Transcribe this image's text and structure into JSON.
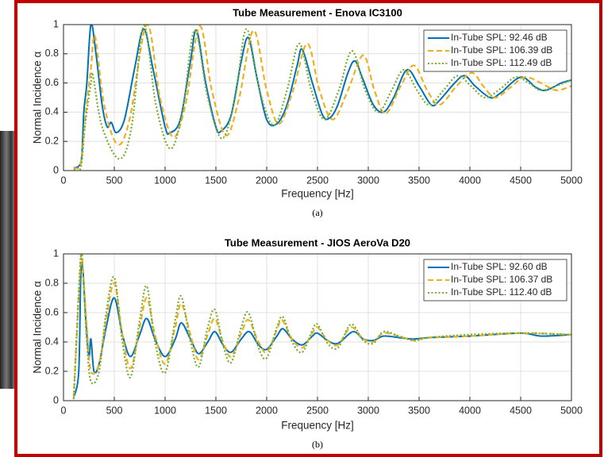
{
  "chart_data": [
    {
      "type": "line",
      "title": "Tube Measurement - Enova IC3100",
      "x_label": "Frequency [Hz]",
      "y_label": "Normal Incidence α",
      "caption": "(a)",
      "xlim": [
        0,
        5000
      ],
      "ylim": [
        0,
        1
      ],
      "xticks": [
        0,
        500,
        1000,
        1500,
        2000,
        2500,
        3000,
        3500,
        4000,
        4500,
        5000
      ],
      "yticks": [
        0,
        0.2,
        0.4,
        0.6,
        0.8,
        1
      ],
      "grid": true,
      "legend": "upper right",
      "series": [
        {
          "name": "In-Tube SPL: 92.46 dB",
          "color": "#0072bd",
          "style": "solid",
          "x": [
            100,
            150,
            180,
            200,
            230,
            270,
            320,
            380,
            430,
            470,
            520,
            600,
            700,
            790,
            880,
            1000,
            1050,
            1150,
            1250,
            1310,
            1400,
            1500,
            1550,
            1650,
            1750,
            1820,
            1900,
            2000,
            2100,
            2200,
            2300,
            2350,
            2450,
            2550,
            2620,
            2700,
            2800,
            2870,
            2950,
            3050,
            3150,
            3250,
            3380,
            3500,
            3620,
            3700,
            3850,
            3950,
            4050,
            4200,
            4300,
            4500,
            4650,
            4750,
            4900,
            5000
          ],
          "values": [
            0.02,
            0.03,
            0.1,
            0.4,
            0.6,
            1.0,
            0.8,
            0.45,
            0.3,
            0.33,
            0.26,
            0.35,
            0.7,
            0.97,
            0.7,
            0.3,
            0.26,
            0.35,
            0.75,
            0.96,
            0.6,
            0.3,
            0.27,
            0.38,
            0.75,
            0.91,
            0.65,
            0.35,
            0.32,
            0.45,
            0.72,
            0.83,
            0.6,
            0.38,
            0.36,
            0.45,
            0.67,
            0.75,
            0.62,
            0.45,
            0.4,
            0.5,
            0.69,
            0.58,
            0.45,
            0.48,
            0.6,
            0.65,
            0.58,
            0.5,
            0.53,
            0.64,
            0.57,
            0.55,
            0.6,
            0.62
          ]
        },
        {
          "name": "In-Tube SPL: 106.39 dB",
          "color": "#edb120",
          "style": "dashed",
          "x": [
            100,
            170,
            220,
            270,
            310,
            400,
            530,
            650,
            820,
            950,
            1080,
            1200,
            1340,
            1460,
            1600,
            1730,
            1870,
            2000,
            2120,
            2260,
            2400,
            2520,
            2650,
            2800,
            2950,
            3060,
            3170,
            3320,
            3450,
            3580,
            3700,
            3870,
            4020,
            4130,
            4250,
            4400,
            4540,
            4700,
            4850,
            5000
          ],
          "values": [
            0.02,
            0.05,
            0.4,
            0.7,
            0.92,
            0.45,
            0.18,
            0.35,
            1.0,
            0.5,
            0.23,
            0.45,
            0.99,
            0.55,
            0.24,
            0.5,
            0.96,
            0.55,
            0.32,
            0.55,
            0.87,
            0.55,
            0.35,
            0.55,
            0.79,
            0.55,
            0.39,
            0.58,
            0.72,
            0.55,
            0.45,
            0.58,
            0.67,
            0.58,
            0.5,
            0.57,
            0.64,
            0.6,
            0.55,
            0.58
          ]
        },
        {
          "name": "In-Tube SPL: 112.49 dB",
          "color": "#77ac30",
          "style": "dotted",
          "x": [
            100,
            170,
            210,
            270,
            290,
            380,
            550,
            670,
            790,
            910,
            1050,
            1170,
            1290,
            1420,
            1560,
            1690,
            1800,
            1930,
            2070,
            2200,
            2320,
            2440,
            2570,
            2710,
            2840,
            2970,
            3100,
            3230,
            3350,
            3480,
            3600,
            3740,
            3880,
            4010,
            4150,
            4300,
            4450,
            4580,
            4700,
            4850,
            5000
          ],
          "values": [
            0.01,
            0.02,
            0.3,
            0.6,
            0.65,
            0.3,
            0.08,
            0.3,
            0.99,
            0.45,
            0.15,
            0.4,
            0.96,
            0.5,
            0.22,
            0.5,
            0.97,
            0.55,
            0.31,
            0.55,
            0.87,
            0.55,
            0.35,
            0.55,
            0.82,
            0.55,
            0.4,
            0.55,
            0.69,
            0.55,
            0.45,
            0.55,
            0.65,
            0.58,
            0.5,
            0.56,
            0.64,
            0.6,
            0.55,
            0.58,
            0.62
          ]
        }
      ]
    },
    {
      "type": "line",
      "title": "Tube Measurement - JIOS AeroVa D20",
      "x_label": "Frequency [Hz]",
      "y_label": "Normal Incidence α",
      "caption": "(b)",
      "xlim": [
        0,
        5000
      ],
      "ylim": [
        0,
        1
      ],
      "xticks": [
        0,
        500,
        1000,
        1500,
        2000,
        2500,
        3000,
        3500,
        4000,
        4500,
        5000
      ],
      "yticks": [
        0,
        0.2,
        0.4,
        0.6,
        0.8,
        1
      ],
      "grid": true,
      "legend": "upper right",
      "series": [
        {
          "name": "In-Tube SPL: 92.60 dB",
          "color": "#0072bd",
          "style": "solid",
          "x": [
            100,
            150,
            170,
            190,
            220,
            250,
            270,
            300,
            350,
            420,
            500,
            580,
            660,
            750,
            820,
            900,
            1000,
            1100,
            1160,
            1250,
            1330,
            1420,
            1490,
            1570,
            1650,
            1750,
            1830,
            1920,
            2000,
            2100,
            2160,
            2250,
            2350,
            2450,
            2500,
            2600,
            2700,
            2850,
            2950,
            3050,
            3150,
            3300,
            3450,
            3600,
            4000,
            4500,
            4700,
            5000
          ],
          "values": [
            0.02,
            0.2,
            0.85,
            0.9,
            0.55,
            0.3,
            0.42,
            0.2,
            0.25,
            0.5,
            0.7,
            0.45,
            0.3,
            0.45,
            0.56,
            0.42,
            0.3,
            0.42,
            0.53,
            0.42,
            0.32,
            0.4,
            0.47,
            0.38,
            0.33,
            0.42,
            0.47,
            0.38,
            0.35,
            0.44,
            0.49,
            0.42,
            0.38,
            0.44,
            0.46,
            0.41,
            0.39,
            0.47,
            0.42,
            0.41,
            0.44,
            0.43,
            0.42,
            0.43,
            0.44,
            0.46,
            0.44,
            0.45
          ]
        },
        {
          "name": "In-Tube SPL: 106.37 dB",
          "color": "#edb120",
          "style": "dashed",
          "x": [
            100,
            170,
            190,
            230,
            270,
            350,
            420,
            500,
            580,
            660,
            750,
            820,
            900,
            1000,
            1100,
            1160,
            1250,
            1330,
            1420,
            1490,
            1570,
            1650,
            1750,
            1820,
            1920,
            2000,
            2100,
            2150,
            2250,
            2350,
            2450,
            2500,
            2600,
            2700,
            2830,
            2950,
            3050,
            3150,
            3300,
            3450,
            3600,
            4000,
            4500,
            5000
          ],
          "values": [
            0.02,
            0.96,
            0.9,
            0.5,
            0.2,
            0.25,
            0.55,
            0.8,
            0.45,
            0.22,
            0.5,
            0.7,
            0.45,
            0.25,
            0.5,
            0.66,
            0.45,
            0.28,
            0.45,
            0.56,
            0.4,
            0.3,
            0.46,
            0.55,
            0.4,
            0.33,
            0.48,
            0.55,
            0.42,
            0.36,
            0.46,
            0.5,
            0.41,
            0.38,
            0.5,
            0.42,
            0.4,
            0.46,
            0.44,
            0.41,
            0.43,
            0.44,
            0.46,
            0.45
          ]
        },
        {
          "name": "In-Tube SPL: 112.40 dB",
          "color": "#77ac30",
          "style": "dotted",
          "x": [
            100,
            170,
            190,
            230,
            270,
            350,
            420,
            500,
            580,
            660,
            750,
            820,
            900,
            1000,
            1100,
            1160,
            1250,
            1330,
            1420,
            1490,
            1570,
            1650,
            1750,
            1820,
            1920,
            2000,
            2100,
            2160,
            2250,
            2350,
            2450,
            2500,
            2600,
            2700,
            2830,
            2950,
            3050,
            3150,
            3300,
            3450,
            3600,
            4000,
            4500,
            5000
          ],
          "values": [
            0.01,
            0.99,
            0.88,
            0.4,
            0.13,
            0.2,
            0.6,
            0.84,
            0.4,
            0.16,
            0.55,
            0.78,
            0.4,
            0.19,
            0.55,
            0.71,
            0.4,
            0.23,
            0.5,
            0.62,
            0.38,
            0.26,
            0.5,
            0.6,
            0.36,
            0.29,
            0.5,
            0.57,
            0.4,
            0.33,
            0.48,
            0.52,
            0.39,
            0.36,
            0.52,
            0.41,
            0.39,
            0.47,
            0.44,
            0.41,
            0.43,
            0.45,
            0.46,
            0.45
          ]
        }
      ]
    }
  ]
}
